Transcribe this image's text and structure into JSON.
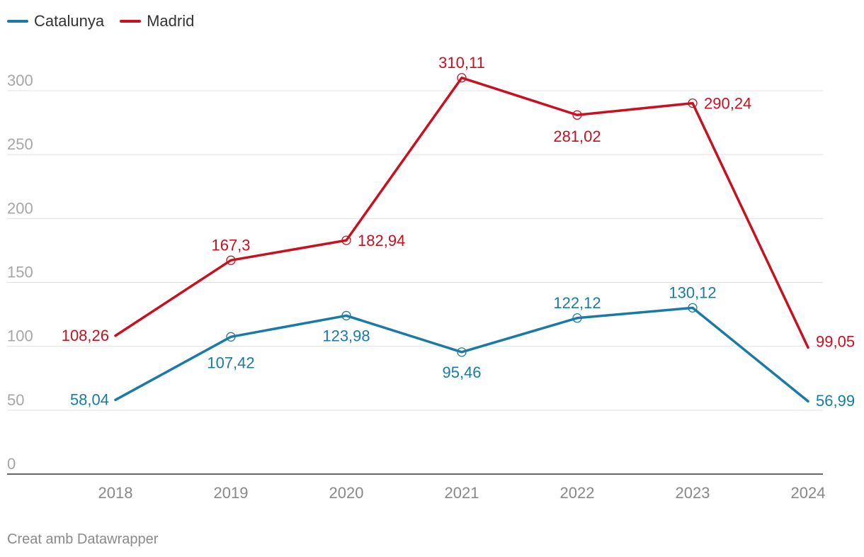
{
  "chart_data": {
    "type": "line",
    "categories": [
      "2018",
      "2019",
      "2020",
      "2021",
      "2022",
      "2023",
      "2024"
    ],
    "series": [
      {
        "name": "Catalunya",
        "color": "#1a7aa6",
        "values": [
          58.04,
          107.42,
          123.98,
          95.46,
          122.12,
          130.12,
          56.99
        ],
        "labels": [
          "58,04",
          "107,42",
          "123,98",
          "95,46",
          "122,12",
          "130,12",
          "56,99"
        ]
      },
      {
        "name": "Madrid",
        "color": "#c8101e",
        "values": [
          108.26,
          167.3,
          182.94,
          310.11,
          281.02,
          290.24,
          99.05
        ],
        "labels": [
          "108,26",
          "167,3",
          "182,94",
          "310,11",
          "281,02",
          "290,24",
          "99,05"
        ]
      }
    ],
    "y_ticks": [
      0,
      50,
      100,
      150,
      200,
      250,
      300
    ],
    "ylim": [
      0,
      300
    ],
    "grid": true,
    "legend_position": "top-left",
    "title": "",
    "xlabel": "",
    "ylabel": ""
  },
  "footer": {
    "credit": "Creat amb Datawrapper"
  }
}
